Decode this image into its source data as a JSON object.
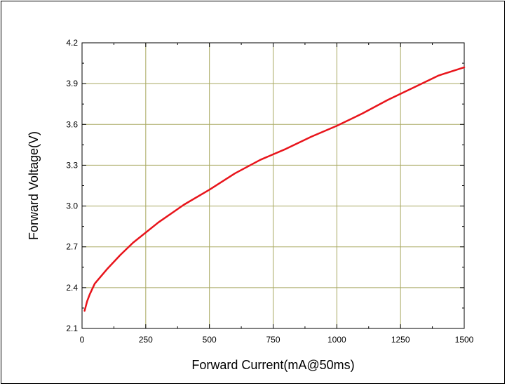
{
  "chart_data": {
    "type": "line",
    "title": "",
    "xlabel": "Forward Current(mA@50ms)",
    "ylabel": "Forward Voltage(V)",
    "xlim": [
      0,
      1500
    ],
    "ylim": [
      2.1,
      4.2
    ],
    "xticks": [
      0,
      250,
      500,
      750,
      1000,
      1250,
      1500
    ],
    "yticks": [
      2.1,
      2.4,
      2.7,
      3.0,
      3.3,
      3.6,
      3.9,
      4.2
    ],
    "xtick_labels": [
      "0",
      "250",
      "500",
      "750",
      "1000",
      "1250",
      "1500"
    ],
    "ytick_labels": [
      "2.1",
      "2.4",
      "2.7",
      "3.0",
      "3.3",
      "3.6",
      "3.9",
      "4.2"
    ],
    "grid": true,
    "colors": {
      "line": "#e8141b",
      "grid": "#a8a860",
      "axis": "#000000"
    },
    "series": [
      {
        "x": [
          10,
          20,
          30,
          50,
          100,
          150,
          200,
          300,
          400,
          500,
          600,
          700,
          800,
          900,
          1000,
          1100,
          1200,
          1300,
          1400,
          1500
        ],
        "y": [
          2.23,
          2.3,
          2.35,
          2.43,
          2.54,
          2.64,
          2.73,
          2.88,
          3.01,
          3.12,
          3.24,
          3.34,
          3.42,
          3.51,
          3.59,
          3.68,
          3.78,
          3.87,
          3.96,
          4.02
        ]
      }
    ]
  }
}
